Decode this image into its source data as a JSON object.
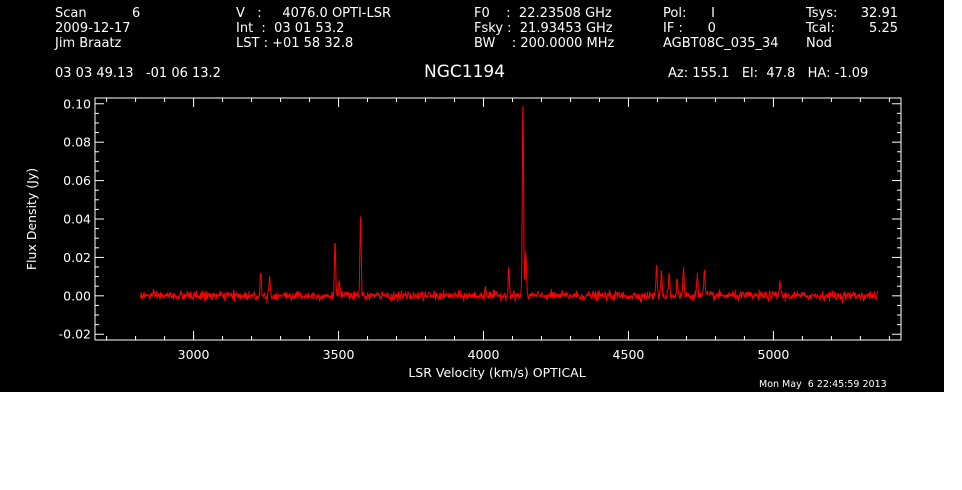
{
  "header": {
    "col1": [
      "Scan           6",
      "2009-12-17",
      "Jim Braatz"
    ],
    "col2": [
      "V   :     4076.0 OPTI-LSR",
      "Int  :  03 01 53.2",
      "LST : +01 58 32.8"
    ],
    "col3": [
      "F0    :  22.23508 GHz",
      "Fsky :  21.93453 GHz",
      "BW    : 200.0000 MHz"
    ],
    "col4": [
      "Pol:      I",
      "IF :      0",
      "AGBT08C_035_34"
    ],
    "col5": [
      "Tsys:",
      "Tcal:",
      "Nod"
    ],
    "col6": [
      "32.91",
      "5.25",
      ""
    ],
    "coords": "03 03 49.13   -01 06 13.2",
    "source": "NGC1194",
    "pointing": "Az: 155.1   El:  47.8   HA: -1.09",
    "timestamp": "Mon May  6 22:45:59 2013"
  },
  "colors": {
    "background": "#000000",
    "foreground": "#ffffff",
    "trace": "#ff0000"
  },
  "chart_data": {
    "type": "line",
    "title": "NGC1194",
    "xlabel": "LSR Velocity (km/s) OPTICAL",
    "ylabel": "Flux Density (Jy)",
    "xlim": [
      2660,
      5440
    ],
    "ylim": [
      -0.023,
      0.103
    ],
    "xticks": [
      3000,
      3500,
      4000,
      4500,
      5000
    ],
    "xtick_labels": [
      "3000",
      "3500",
      "4000",
      "4500",
      "5000"
    ],
    "yticks": [
      -0.02,
      0.0,
      0.02,
      0.04,
      0.06,
      0.08,
      0.1
    ],
    "ytick_labels": [
      "-0.02",
      "0.00",
      "0.02",
      "0.04",
      "0.06",
      "0.08",
      "0.10"
    ],
    "grid": false,
    "legend": "none",
    "series": [
      {
        "color": "#ff0000",
        "x_range": [
          2815,
          5360
        ],
        "baseline": 0.0,
        "noise_rms": 0.0012,
        "peaks": [
          {
            "x": 3232,
            "y": 0.012
          },
          {
            "x": 3262,
            "y": 0.01
          },
          {
            "x": 3488,
            "y": 0.027
          },
          {
            "x": 3503,
            "y": 0.008
          },
          {
            "x": 3576,
            "y": 0.04
          },
          {
            "x": 4007,
            "y": 0.005
          },
          {
            "x": 4087,
            "y": 0.015
          },
          {
            "x": 4136,
            "y": 0.099
          },
          {
            "x": 4146,
            "y": 0.023
          },
          {
            "x": 4597,
            "y": 0.016
          },
          {
            "x": 4614,
            "y": 0.012
          },
          {
            "x": 4640,
            "y": 0.012
          },
          {
            "x": 4668,
            "y": 0.009
          },
          {
            "x": 4690,
            "y": 0.014
          },
          {
            "x": 4737,
            "y": 0.012
          },
          {
            "x": 4762,
            "y": 0.013
          },
          {
            "x": 5023,
            "y": 0.008
          }
        ]
      }
    ]
  }
}
